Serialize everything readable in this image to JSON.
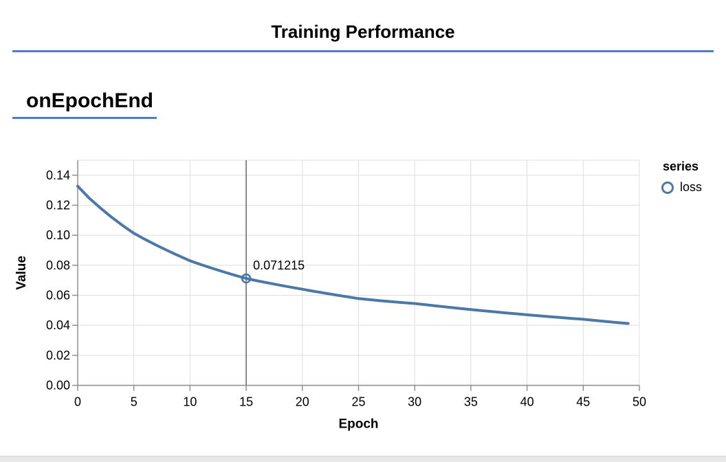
{
  "page": {
    "title": "Training Performance",
    "section_label": "onEpochEnd"
  },
  "colors": {
    "accent": "#4a7bd3",
    "series_line": "#4c78a8",
    "grid": "#dddddd",
    "axis": "#888888",
    "rule": "#6e6e6e",
    "text": "#000000",
    "bottom_strip": "#e8e8e8"
  },
  "legend": {
    "title": "series",
    "items": [
      {
        "label": "loss",
        "color": "#4c78a8"
      }
    ]
  },
  "chart_data": {
    "type": "line",
    "title": "",
    "xlabel": "Epoch",
    "ylabel": "Value",
    "xlim": [
      0,
      50
    ],
    "ylim": [
      0,
      0.15
    ],
    "x_ticks": [
      0,
      5,
      10,
      15,
      20,
      25,
      30,
      35,
      40,
      45,
      50
    ],
    "y_ticks": [
      0.0,
      0.02,
      0.04,
      0.06,
      0.08,
      0.1,
      0.12,
      0.14
    ],
    "grid": true,
    "legend_position": "right",
    "series": [
      {
        "name": "loss",
        "color": "#4c78a8",
        "x": [
          0,
          1,
          2,
          3,
          4,
          5,
          6,
          7,
          8,
          9,
          10,
          11,
          12,
          13,
          14,
          15,
          16,
          17,
          18,
          19,
          20,
          21,
          22,
          23,
          24,
          25,
          26,
          27,
          28,
          29,
          30,
          31,
          32,
          33,
          34,
          35,
          36,
          37,
          38,
          39,
          40,
          41,
          42,
          43,
          44,
          45,
          46,
          47,
          48,
          49
        ],
        "values": [
          0.13269,
          0.12495,
          0.11825,
          0.11213,
          0.10648,
          0.1013,
          0.09725,
          0.0934,
          0.08975,
          0.0863,
          0.083,
          0.08038,
          0.0779,
          0.07555,
          0.07333,
          0.071215,
          0.06964,
          0.06814,
          0.06671,
          0.06534,
          0.06401,
          0.06268,
          0.06141,
          0.06018,
          0.05898,
          0.0578,
          0.05705,
          0.05635,
          0.0557,
          0.05508,
          0.0545,
          0.05366,
          0.05284,
          0.05204,
          0.05126,
          0.0505,
          0.04976,
          0.04904,
          0.04834,
          0.04766,
          0.047,
          0.04637,
          0.04575,
          0.04515,
          0.04457,
          0.044,
          0.04327,
          0.04256,
          0.04187,
          0.0412
        ]
      }
    ],
    "highlight": {
      "x": 15,
      "value": 0.071215,
      "label": "0.071215"
    }
  }
}
